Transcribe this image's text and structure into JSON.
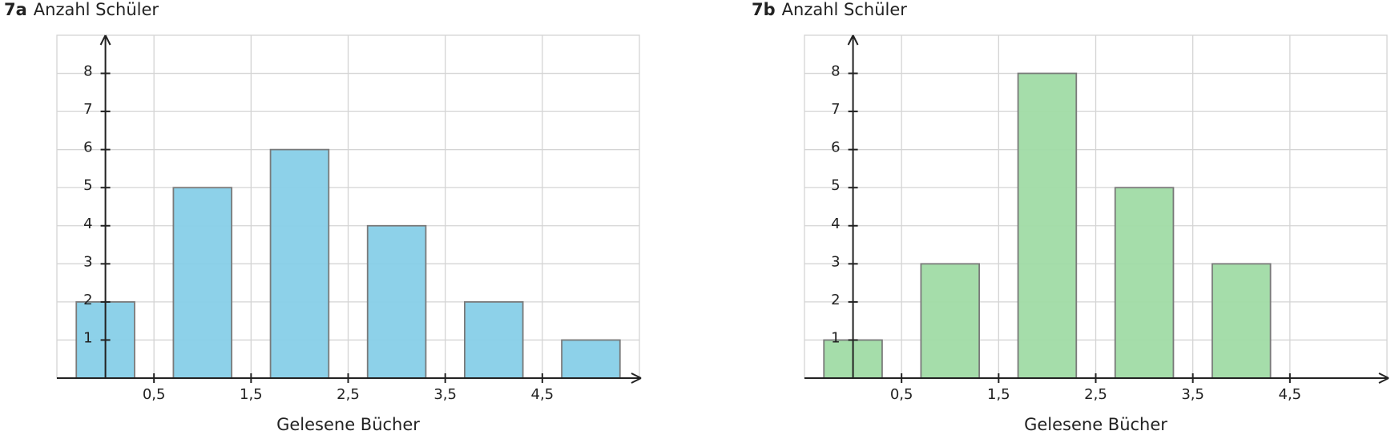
{
  "chart_data": [
    {
      "type": "bar",
      "label": "7a",
      "title": "Anzahl Schüler",
      "x_label": "Gelesene Bücher",
      "x": [
        0,
        1,
        2,
        3,
        4,
        5
      ],
      "values": [
        2,
        5,
        6,
        4,
        2,
        1
      ],
      "color": "#87cfe8",
      "xlim": [
        -0.5,
        5.5
      ],
      "ylim": [
        0,
        9
      ],
      "xticks": [
        {
          "value": 0.5,
          "label": "0,5"
        },
        {
          "value": 1.5,
          "label": "1,5"
        },
        {
          "value": 2.5,
          "label": "2,5"
        },
        {
          "value": 3.5,
          "label": "3,5"
        },
        {
          "value": 4.5,
          "label": "4,5"
        }
      ],
      "yticks": [
        1,
        2,
        3,
        4,
        5,
        6,
        7,
        8
      ],
      "grid": true
    },
    {
      "type": "bar",
      "label": "7b",
      "title": "Anzahl Schüler",
      "x_label": "Gelesene Bücher",
      "x": [
        0,
        1,
        2,
        3,
        4,
        5
      ],
      "values": [
        1,
        3,
        8,
        5,
        3,
        0
      ],
      "color": "#a0dba5",
      "xlim": [
        -0.5,
        5.5
      ],
      "ylim": [
        0,
        9
      ],
      "xticks": [
        {
          "value": 0.5,
          "label": "0,5"
        },
        {
          "value": 1.5,
          "label": "1,5"
        },
        {
          "value": 2.5,
          "label": "2,5"
        },
        {
          "value": 3.5,
          "label": "3,5"
        },
        {
          "value": 4.5,
          "label": "4,5"
        }
      ],
      "yticks": [
        1,
        2,
        3,
        4,
        5,
        6,
        7,
        8
      ],
      "grid": true
    }
  ]
}
